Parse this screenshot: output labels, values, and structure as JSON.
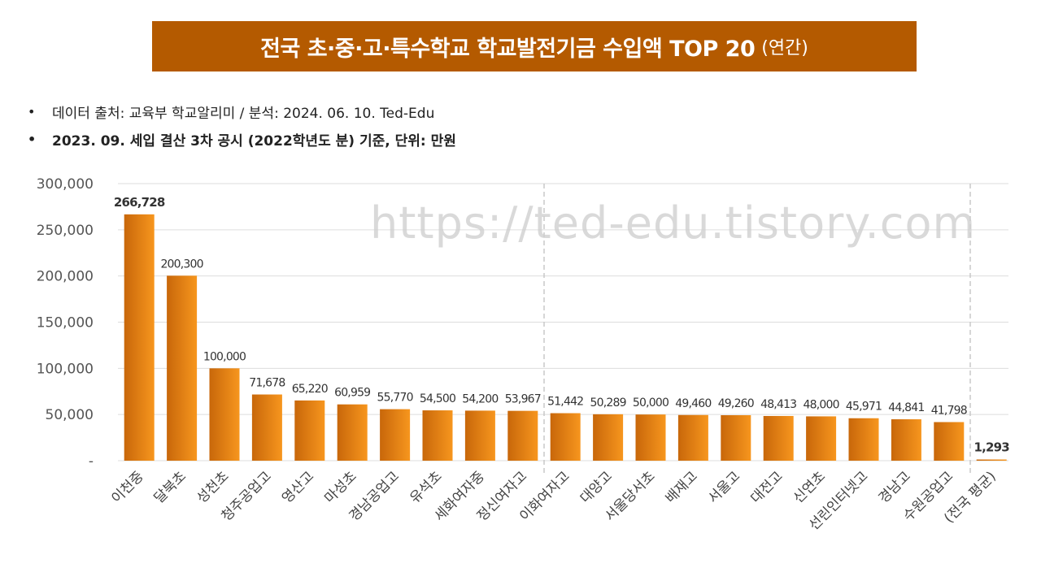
{
  "title": {
    "main": "전국 초·중·고·특수학교 학교발전기금 수입액 TOP 20",
    "sub": "(연간)"
  },
  "bullets": [
    "데이터 출처: 교육부 학교알리미 / 분석: 2024. 06. 10. Ted-Edu",
    "2023. 09. 세입 결산 3차 공시 (2022학년도 분) 기준, 단위: 만원"
  ],
  "watermark": "https://ted-edu.tistory.com",
  "colors": {
    "title_bg": "#b45a00",
    "bar_dark": "#c8670a",
    "bar_light": "#f7961e"
  },
  "chart_data": {
    "type": "bar",
    "title": "",
    "xlabel": "",
    "ylabel": "",
    "ylim": [
      0,
      300000
    ],
    "yticks": [
      "-",
      "50,000",
      "100,000",
      "150,000",
      "200,000",
      "250,000",
      "300,000"
    ],
    "categories": [
      "이천중",
      "달북초",
      "성천초",
      "청주공업고",
      "영산고",
      "마성초",
      "경남공업고",
      "유석초",
      "세화여자중",
      "정신여자고",
      "이화여자고",
      "대양고",
      "서울당서초",
      "배재고",
      "서울고",
      "대전고",
      "신연초",
      "선린인터넷고",
      "경남고",
      "수원공업고",
      "(전국 평균)"
    ],
    "values": [
      266728,
      200300,
      100000,
      71678,
      65220,
      60959,
      55770,
      54500,
      54200,
      53967,
      51442,
      50289,
      50000,
      49460,
      49260,
      48413,
      48000,
      45971,
      44841,
      41798,
      1293
    ],
    "labels": [
      "266,728",
      "200,300",
      "100,000",
      "71,678",
      "65,220",
      "60,959",
      "55,770",
      "54,500",
      "54,200",
      "53,967",
      "51,442",
      "50,289",
      "50,000",
      "49,460",
      "49,260",
      "48,413",
      "48,000",
      "45,971",
      "44,841",
      "41,798",
      "1,293"
    ],
    "bold_labels": [
      0,
      20
    ],
    "separators_after": [
      9,
      19
    ]
  }
}
